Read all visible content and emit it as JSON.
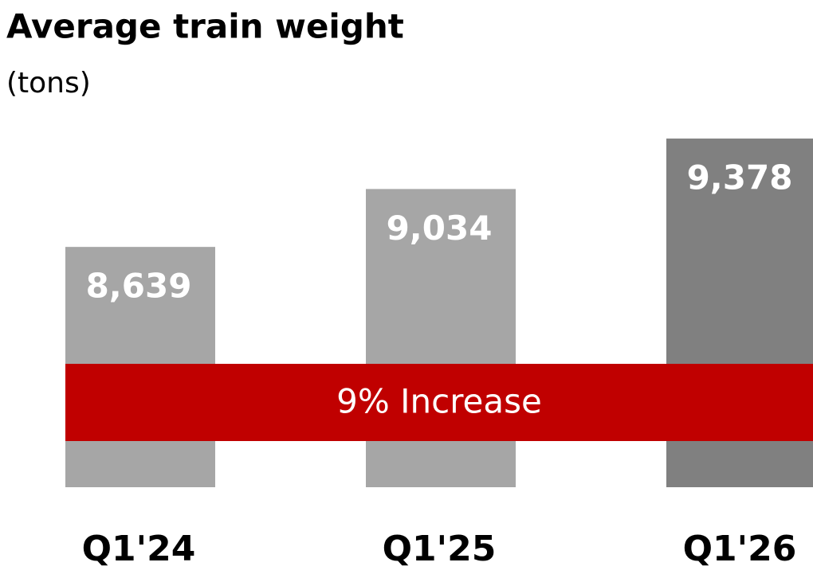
{
  "chart_data": {
    "type": "bar",
    "title": "Average train weight",
    "subtitle": "(tons)",
    "categories": [
      "Q1'24",
      "Q1'25",
      "Q1'26"
    ],
    "values": [
      8639,
      9034,
      9378
    ],
    "value_labels": [
      "8,639",
      "9,034",
      "9,378"
    ],
    "colors": [
      "#a6a6a6",
      "#a6a6a6",
      "#808080"
    ],
    "annotation": "9% Increase",
    "annotation_color": "#c00000",
    "ylim": [
      7000,
      9400
    ]
  }
}
